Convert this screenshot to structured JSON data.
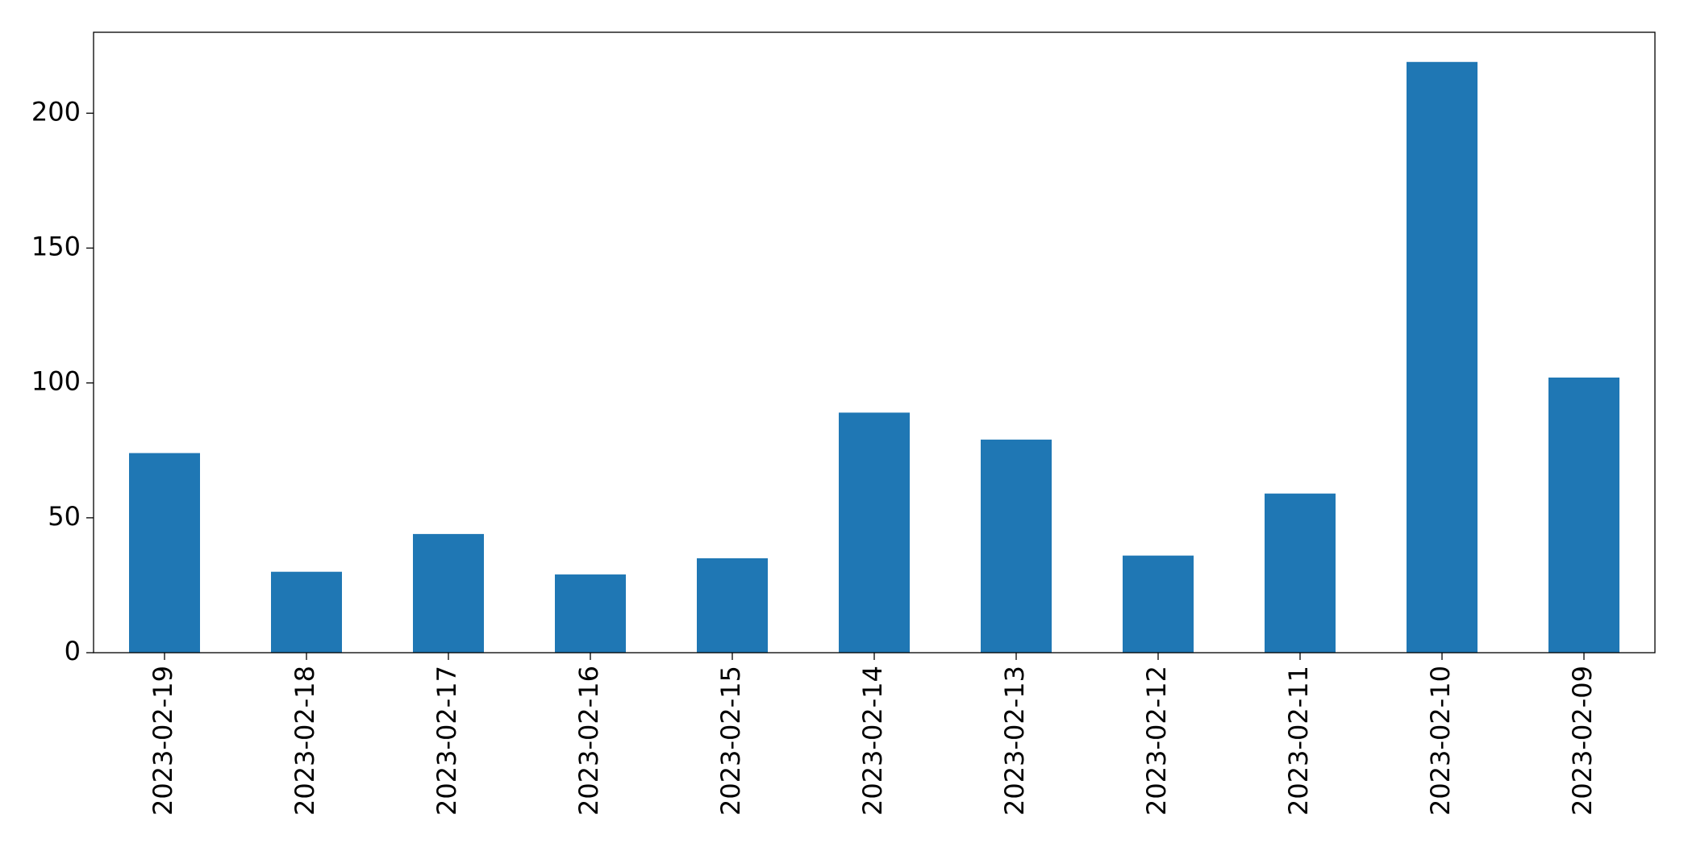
{
  "chart_data": {
    "type": "bar",
    "categories": [
      "2023-02-19",
      "2023-02-18",
      "2023-02-17",
      "2023-02-16",
      "2023-02-15",
      "2023-02-14",
      "2023-02-13",
      "2023-02-12",
      "2023-02-11",
      "2023-02-10",
      "2023-02-09"
    ],
    "values": [
      74,
      30,
      44,
      29,
      35,
      89,
      79,
      36,
      59,
      219,
      102
    ],
    "color": "#1f77b4",
    "ylim": [
      0,
      230
    ],
    "yticks": [
      0,
      50,
      100,
      150,
      200
    ],
    "grid": false
  }
}
